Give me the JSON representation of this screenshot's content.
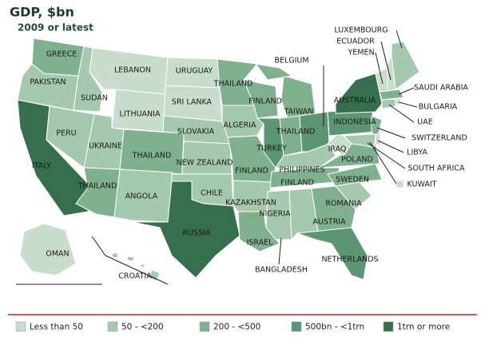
{
  "header": {
    "title": "GDP, $bn",
    "subtitle": "2009 or latest"
  },
  "legend": [
    {
      "label": "Less than 50",
      "color": "#c9ddcd"
    },
    {
      "label": "50 - <200",
      "color": "#a4c9ae"
    },
    {
      "label": "200 - <500",
      "color": "#80b18f"
    },
    {
      "label": "500bn - <1trn",
      "color": "#5b9673"
    },
    {
      "label": "1trn or more",
      "color": "#356f4d"
    }
  ],
  "regions": [
    {
      "label": "GREECE",
      "category": 2
    },
    {
      "label": "PAKISTAN",
      "category": 1
    },
    {
      "label": "ITALY",
      "category": 4
    },
    {
      "label": "PERU",
      "category": 1
    },
    {
      "label": "SUDAN",
      "category": 1
    },
    {
      "label": "LEBANON",
      "category": 0
    },
    {
      "label": "LITHUANIA",
      "category": 0
    },
    {
      "label": "UKRAINE",
      "category": 1
    },
    {
      "label": "THAILAND",
      "category": 2
    },
    {
      "label": "THAILAND",
      "category": 2
    },
    {
      "label": "ANGOLA",
      "category": 1
    },
    {
      "label": "URUGUAY",
      "category": 0
    },
    {
      "label": "SRI LANKA",
      "category": 0
    },
    {
      "label": "SLOVAKIA",
      "category": 1
    },
    {
      "label": "NEW ZEALAND",
      "category": 1
    },
    {
      "label": "CHILE",
      "category": 1
    },
    {
      "label": "RUSSIA",
      "category": 4
    },
    {
      "label": "THAILAND",
      "category": 2
    },
    {
      "label": "ALGERIA",
      "category": 1
    },
    {
      "label": "FINLAND",
      "category": 2
    },
    {
      "label": "KAZAKHSTAN",
      "category": 1
    },
    {
      "label": "ISRAEL",
      "category": 2
    },
    {
      "label": "FINLAND",
      "category": 2
    },
    {
      "label": "TURKEY",
      "category": 3
    },
    {
      "label": "TAIWAN",
      "category": 2
    },
    {
      "label": "THAILAND",
      "category": 2
    },
    {
      "label": "BELGIUM",
      "category": 3
    },
    {
      "label": "PHILIPPINES",
      "category": 1
    },
    {
      "label": "FINLAND",
      "category": 2
    },
    {
      "label": "NIGERIA",
      "category": 1
    },
    {
      "label": "BANGLADESH",
      "category": 1
    },
    {
      "label": "AUSTRIA",
      "category": 2
    },
    {
      "label": "NETHERLANDS",
      "category": 3
    },
    {
      "label": "ROMANIA",
      "category": 1
    },
    {
      "label": "SWEDEN",
      "category": 2
    },
    {
      "label": "POLAND",
      "category": 2
    },
    {
      "label": "IRAQ",
      "category": 0
    },
    {
      "label": "INDONESIA",
      "category": 3
    },
    {
      "label": "AUSTRALIA",
      "category": 4
    },
    {
      "label": "LUXEMBOURG",
      "category": 1
    },
    {
      "label": "ECUADOR",
      "category": 0
    },
    {
      "label": "YEMEN",
      "category": 0
    },
    {
      "label": "SAUDI ARABIA",
      "category": 2
    },
    {
      "label": "BULGARIA",
      "category": 0
    },
    {
      "label": "UAE",
      "category": 1
    },
    {
      "label": "SWITZERLAND",
      "category": 2
    },
    {
      "label": "LIBYA",
      "category": 0
    },
    {
      "label": "SOUTH AFRICA",
      "category": 1
    },
    {
      "label": "KUWAIT",
      "category": 0
    },
    {
      "label": "OMAN",
      "category": 0
    },
    {
      "label": "CROATIA",
      "category": 1
    }
  ]
}
